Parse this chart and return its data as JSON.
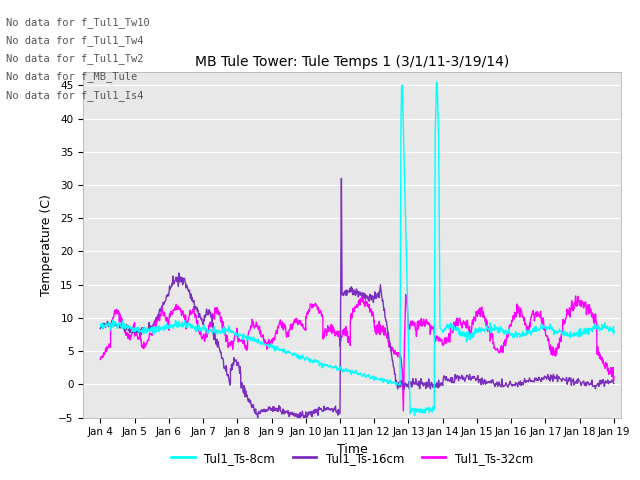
{
  "title": "MB Tule Tower: Tule Temps 1 (3/1/11-3/19/14)",
  "xlabel": "Time",
  "ylabel": "Temperature (C)",
  "ylim": [
    -5,
    47
  ],
  "yticks": [
    -5,
    0,
    5,
    10,
    15,
    20,
    25,
    30,
    35,
    40,
    45
  ],
  "xlim_days": [
    3.5,
    19.2
  ],
  "xtick_labels": [
    "Jan 4",
    "Jan 5",
    "Jan 6",
    "Jan 7",
    "Jan 8",
    "Jan 9",
    "Jan 10",
    "Jan 11",
    "Jan 12",
    "Jan 13",
    "Jan 14",
    "Jan 15",
    "Jan 16",
    "Jan 17",
    "Jan 18",
    "Jan 19"
  ],
  "xtick_positions": [
    4,
    5,
    6,
    7,
    8,
    9,
    10,
    11,
    12,
    13,
    14,
    15,
    16,
    17,
    18,
    19
  ],
  "legend_labels": [
    "Tul1_Ts-8cm",
    "Tul1_Ts-16cm",
    "Tul1_Ts-32cm"
  ],
  "legend_colors": [
    "#00FFFF",
    "#7B2FBE",
    "#FF00FF"
  ],
  "no_data_texts": [
    "No data for f_Tul1_Tw10",
    "No data for f_Tul1_Tw4",
    "No data for f_Tul1_Tw2",
    "No data for f_MB_Tule",
    "No data for f_Tul1_Is4"
  ],
  "background_color": "#E8E8E8",
  "grid_color": "#FFFFFF",
  "color_8cm": "#00FFFF",
  "color_16cm": "#7B2FBE",
  "color_32cm": "#FF00FF",
  "figsize": [
    6.4,
    4.8
  ],
  "dpi": 100
}
